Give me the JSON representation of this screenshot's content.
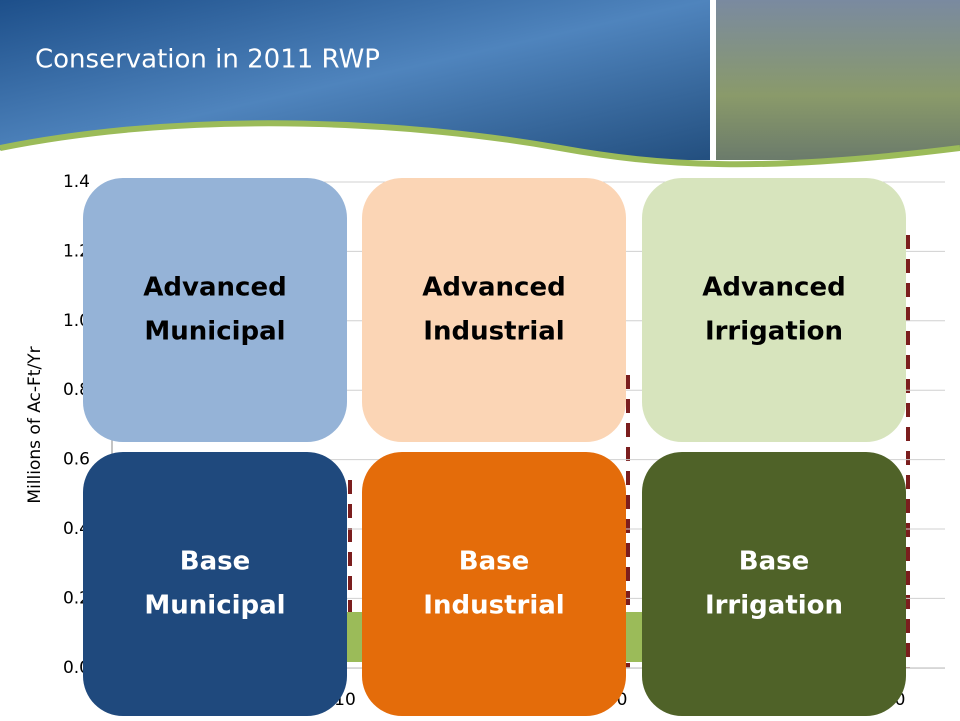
{
  "header": {
    "title": "Conservation in 2011 RWP"
  },
  "chart": {
    "y_axis_label": "Millions of Ac-Ft/Yr",
    "y_tick_labels": [
      "1.4",
      "1.2",
      "1.0",
      "0.8",
      "0.6",
      "0.4",
      "0.2",
      "0.0"
    ],
    "x_tick_fragments": [
      "10",
      "0",
      "0"
    ]
  },
  "boxes": [
    {
      "label_line1": "Advanced",
      "label_line2": "Municipal"
    },
    {
      "label_line1": "Advanced",
      "label_line2": "Industrial"
    },
    {
      "label_line1": "Advanced",
      "label_line2": "Irrigation"
    },
    {
      "label_line1": "Base",
      "label_line2": "Municipal"
    },
    {
      "label_line1": "Base",
      "label_line2": "Industrial"
    },
    {
      "label_line1": "Base",
      "label_line2": "Irrigation"
    }
  ]
}
